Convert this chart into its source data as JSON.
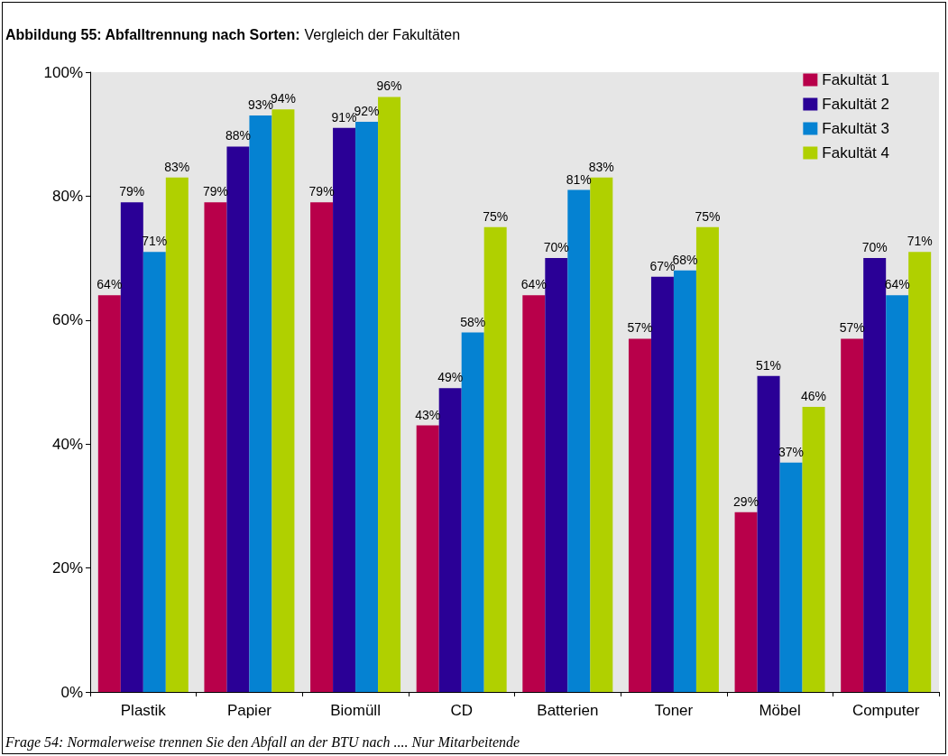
{
  "chart_data": {
    "type": "bar",
    "title": "Abbildung 55:  Abfalltrennung nach Sorten:",
    "subtitle": "Vergleich der Fakultäten",
    "annotations": [
      "Frage 54: Normalerweise trennen Sie den Abfall an der BTU nach ....  Nur Mitarbeitende"
    ],
    "categories": [
      "Plastik",
      "Papier",
      "Biomüll",
      "CD",
      "Batterien",
      "Toner",
      "Möbel",
      "Computer"
    ],
    "series": [
      {
        "name": "Fakultät 1",
        "color": "#b8004a",
        "values": [
          64,
          79,
          79,
          43,
          64,
          57,
          29,
          57
        ],
        "value_labels": [
          "64%",
          "79%",
          "79%",
          "43%",
          "64%",
          "57%",
          "29%",
          "57%"
        ]
      },
      {
        "name": "Fakultät 2",
        "color": "#2a0096",
        "values": [
          79,
          88,
          91,
          49,
          70,
          67,
          51,
          70
        ],
        "value_labels": [
          "79%",
          "88%",
          "91%",
          "49%",
          "70%",
          "67%",
          "51%",
          "70%"
        ]
      },
      {
        "name": "Fakultät 3",
        "color": "#0582d2",
        "values": [
          71,
          93,
          92,
          58,
          81,
          68,
          37,
          64
        ],
        "value_labels": [
          "71%",
          "93%",
          "92%",
          "58%",
          "81%",
          "68%",
          "37%",
          "64%"
        ]
      },
      {
        "name": "Fakultät 4",
        "color": "#b0d000",
        "values": [
          83,
          94,
          96,
          75,
          83,
          75,
          46,
          71
        ],
        "value_labels": [
          "83%",
          "94%",
          "96%",
          "75%",
          "83%",
          "75%",
          "46%",
          "71%"
        ]
      }
    ],
    "ylim": [
      0,
      100
    ],
    "yticks": [
      {
        "value": 0,
        "label": "0%"
      },
      {
        "value": 20,
        "label": "20%"
      },
      {
        "value": 40,
        "label": "40%"
      },
      {
        "value": 60,
        "label": "60%"
      },
      {
        "value": 80,
        "label": "80%"
      },
      {
        "value": 100,
        "label": "100%"
      }
    ],
    "grid": false,
    "legend": "top right"
  }
}
